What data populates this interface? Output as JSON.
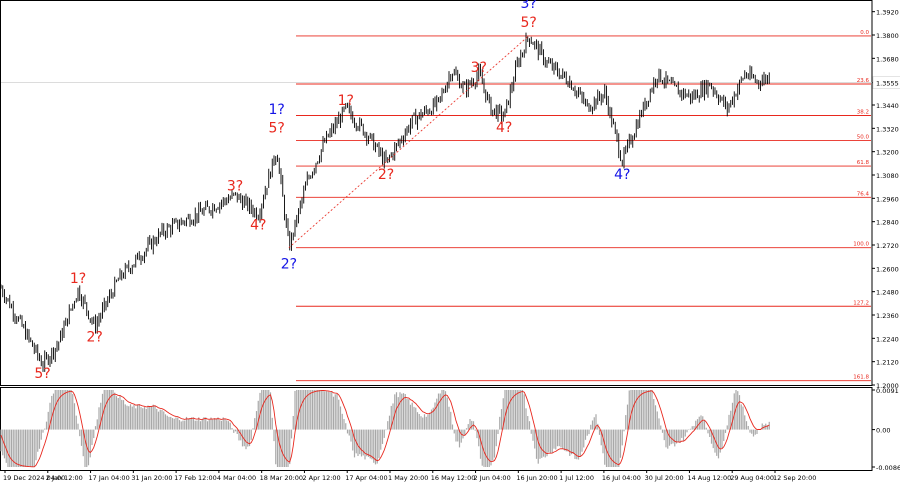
{
  "chart_data": [
    {
      "type": "candlestick",
      "title": "",
      "yaxis_ticks": [
        "1.3920",
        "1.3800",
        "1.3680",
        "1.3555",
        "1.3440",
        "1.3320",
        "1.3200",
        "1.3080",
        "1.2960",
        "1.2840",
        "1.2720",
        "1.2600",
        "1.2480",
        "1.2360",
        "1.2240",
        "1.2120",
        "1.2000"
      ],
      "current_price": "1.3555",
      "ylim": [
        1.2,
        1.398
      ],
      "xaxis_ticks": [
        "19 Dec 2024 04:00",
        "2 Jan 12:00",
        "17 Jan 04:00",
        "31 Jan 20:00",
        "17 Feb 12:00",
        "4 Mar 04:00",
        "18 Mar 20:00",
        "2 Apr 12:00",
        "17 Apr 04:00",
        "1 May 20:00",
        "16 May 12:00",
        "2 Jun 04:00",
        "16 Jun 20:00",
        "1 Jul 12:00",
        "16 Jul 04:00",
        "30 Jul 20:00",
        "14 Aug 12:00",
        "29 Aug 04:00",
        "12 Sep 20:00"
      ],
      "fib_levels": [
        {
          "label": "0.0",
          "price": 1.3795
        },
        {
          "label": "23.6",
          "price": 1.3548
        },
        {
          "label": "38.2",
          "price": 1.3386
        },
        {
          "label": "50.0",
          "price": 1.3257
        },
        {
          "label": "61.8",
          "price": 1.3126
        },
        {
          "label": "76.4",
          "price": 1.2965
        },
        {
          "label": "100.0",
          "price": 1.2706
        },
        {
          "label": "127.2",
          "price": 1.2405
        },
        {
          "label": "161.8",
          "price": 1.2022
        }
      ],
      "wave_labels": [
        {
          "text": "5?",
          "color": "#e8281e",
          "date_idx": 9.5,
          "price": 1.2035
        },
        {
          "text": "1?",
          "color": "#e8281e",
          "date_idx": 17.6,
          "price": 1.2525
        },
        {
          "text": "2?",
          "color": "#e8281e",
          "date_idx": 21.4,
          "price": 1.2225
        },
        {
          "text": "3?",
          "color": "#e8281e",
          "date_idx": 53.5,
          "price": 1.3
        },
        {
          "text": "4?",
          "color": "#e8281e",
          "date_idx": 58.8,
          "price": 1.28
        },
        {
          "text": "1?",
          "color": "#1414e6",
          "date_idx": 63.0,
          "price": 1.3395
        },
        {
          "text": "5?",
          "color": "#e8281e",
          "date_idx": 63.0,
          "price": 1.3298
        },
        {
          "text": "2?",
          "color": "#1414e6",
          "date_idx": 65.8,
          "price": 1.26
        },
        {
          "text": "1?",
          "color": "#e8281e",
          "date_idx": 78.8,
          "price": 1.344
        },
        {
          "text": "2?",
          "color": "#e8281e",
          "date_idx": 88.0,
          "price": 1.306
        },
        {
          "text": "3?",
          "color": "#e8281e",
          "date_idx": 109.2,
          "price": 1.361
        },
        {
          "text": "4?",
          "color": "#e8281e",
          "date_idx": 115.0,
          "price": 1.33
        },
        {
          "text": "3?",
          "color": "#1414e6",
          "date_idx": 120.6,
          "price": 1.394
        },
        {
          "text": "5?",
          "color": "#e8281e",
          "date_idx": 120.6,
          "price": 1.384
        },
        {
          "text": "4?",
          "color": "#1414e6",
          "date_idx": 142.0,
          "price": 1.306
        }
      ],
      "indicator": {
        "type": "oscillator",
        "ticks": [
          "0.0091",
          "0.00",
          "-0.0086"
        ],
        "ylim": [
          -0.0086,
          0.0091
        ]
      },
      "grid": false
    }
  ]
}
